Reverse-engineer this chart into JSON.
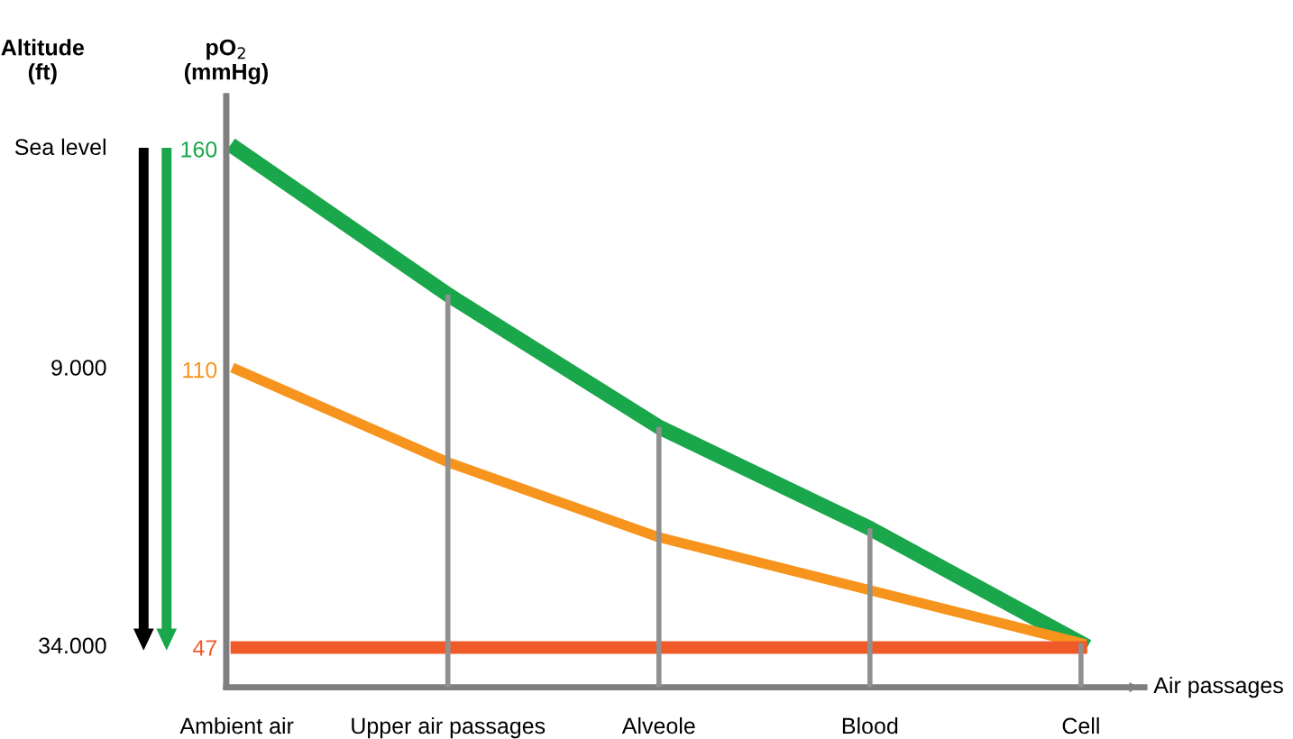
{
  "chart_data": {
    "type": "line",
    "categories": [
      "Ambient air",
      "Upper air passages",
      "Alveole",
      "Blood",
      "Cell"
    ],
    "series": [
      {
        "type": "bar",
        "color": "#909090",
        "values": [
          null,
          127,
          97,
          74,
          48
        ]
      },
      {
        "color": "#1aa64a",
        "values": [
          160,
          127,
          97,
          74,
          48
        ]
      },
      {
        "color": "#f7941d",
        "values": [
          110,
          89,
          72,
          60,
          48
        ]
      },
      {
        "color": "#f05a28",
        "values": [
          47,
          47,
          47,
          47,
          47
        ]
      }
    ],
    "ylabel": "pO$_{2}$\n(mmHg)",
    "xlabel": "Air passages",
    "annotations": [
      "Altitude\n(ft)",
      "Sea level",
      "9.000",
      "34.000"
    ],
    "ylim": [
      38,
      172
    ],
    "yticks": [
      47,
      110,
      160
    ],
    "marker": "none"
  }
}
